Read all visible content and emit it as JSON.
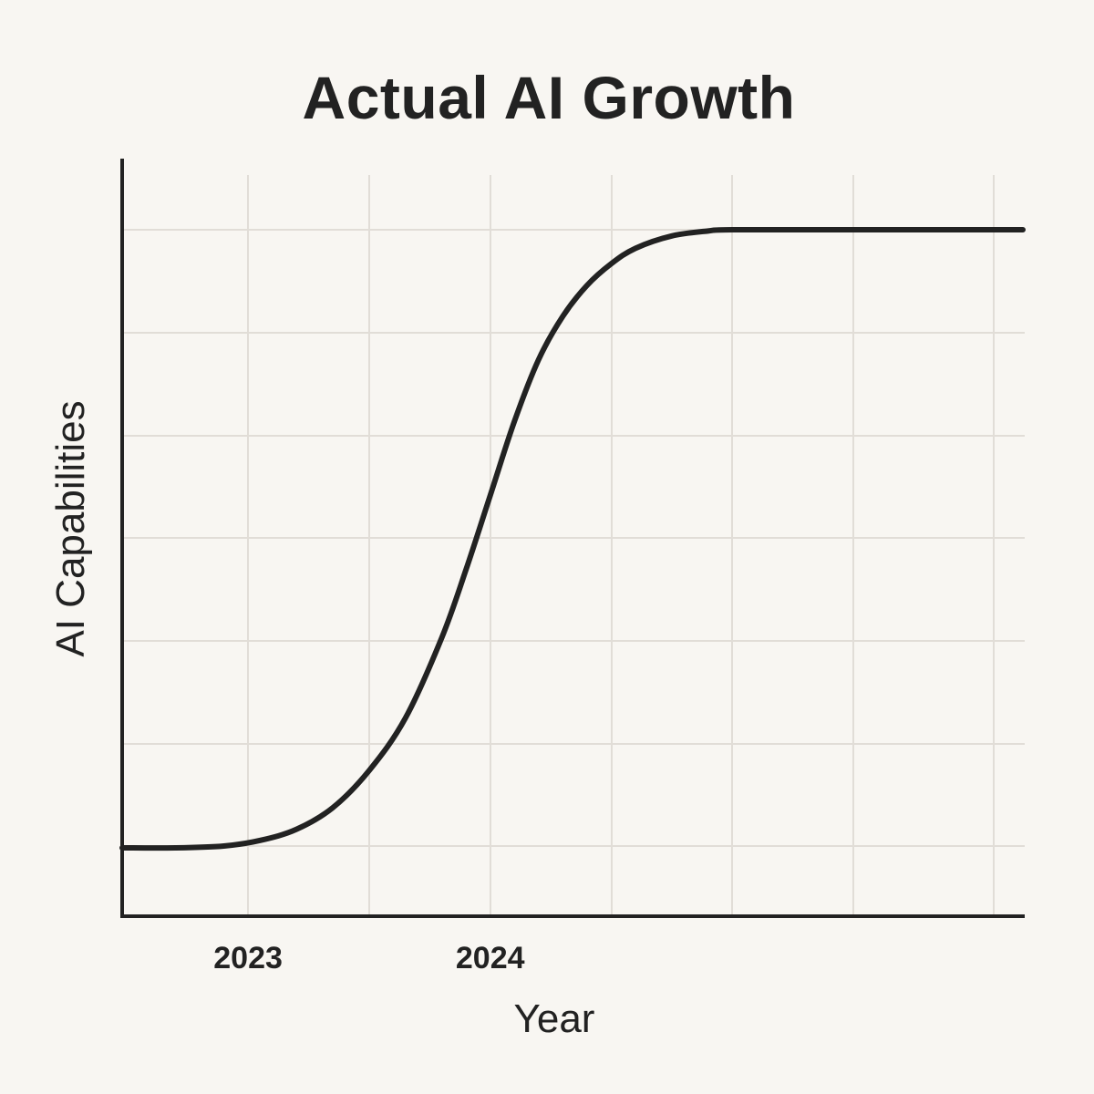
{
  "chart_data": {
    "type": "line",
    "title": "Actual AI Growth",
    "xlabel": "Year",
    "ylabel": "AI Capabilities",
    "xlim": [
      2022.48,
      2026.2
    ],
    "ylim": [
      0,
      1
    ],
    "x_ticks": [
      {
        "value": 2023,
        "label": "2023"
      },
      {
        "value": 2024,
        "label": "2024"
      }
    ],
    "grid": true,
    "legend": "none",
    "colors": {
      "background": "#f8f6f2",
      "line": "#222222",
      "grid": "#e1ddd7",
      "text": "#222222"
    },
    "series": [
      {
        "x": [
          2022.48,
          2022.7,
          2022.9,
          2023.05,
          2023.2,
          2023.35,
          2023.5,
          2023.65,
          2023.8,
          2023.9,
          2024.0,
          2024.1,
          2024.2,
          2024.3,
          2024.4,
          2024.5,
          2024.6,
          2024.75,
          2024.9,
          2025.0,
          2025.5,
          2026.2
        ],
        "y": [
          0.0,
          0.0,
          0.003,
          0.012,
          0.03,
          0.065,
          0.125,
          0.21,
          0.34,
          0.45,
          0.57,
          0.69,
          0.79,
          0.86,
          0.91,
          0.945,
          0.97,
          0.99,
          0.998,
          1.0,
          1.0,
          1.0
        ]
      }
    ]
  }
}
